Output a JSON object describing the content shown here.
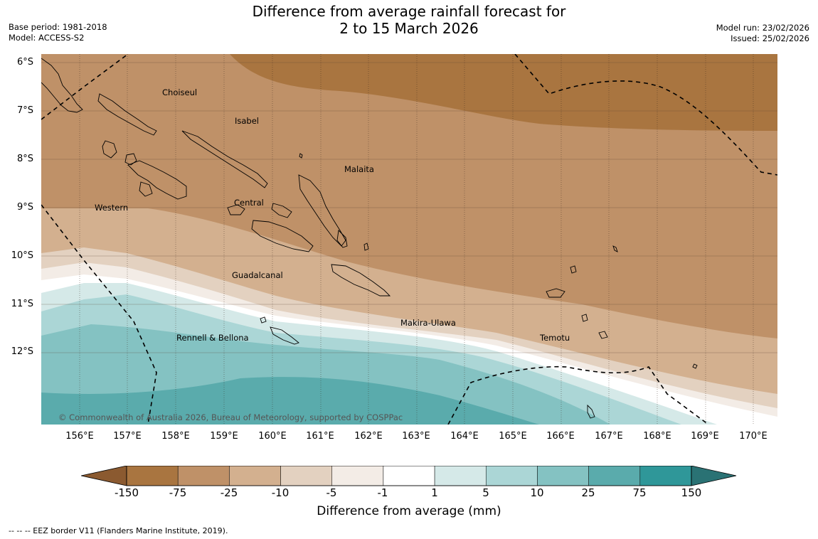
{
  "title": {
    "line1": "Difference from average rainfall forecast for",
    "line2": "2 to 15 March 2026"
  },
  "meta": {
    "base_period": "Base period: 1981-2018",
    "model": "Model: ACCESS-S2",
    "model_run": "Model run: 23/02/2026",
    "issued": "Issued: 25/02/2026"
  },
  "latitude_labels": [
    "6°S",
    "7°S",
    "8°S",
    "9°S",
    "10°S",
    "11°S",
    "12°S"
  ],
  "longitude_labels": [
    "156°E",
    "157°E",
    "158°E",
    "159°E",
    "160°E",
    "161°E",
    "162°E",
    "163°E",
    "164°E",
    "165°E",
    "166°E",
    "167°E",
    "168°E",
    "169°E",
    "170°E"
  ],
  "places": {
    "choiseul": "Choiseul",
    "isabel": "Isabel",
    "malaita": "Malaita",
    "western": "Western",
    "central": "Central",
    "guadalcanal": "Guadalcanal",
    "makira_ulawa": "Makira-Ulawa",
    "temotu": "Temotu",
    "rennell_bellona": "Rennell & Bellona"
  },
  "copyright": "© Commonwealth of Australia 2026, Bureau of Meteorology, supported by COSPPac",
  "colorbar": {
    "title": "Difference from average (mm)",
    "ticks": [
      "-150",
      "-75",
      "-25",
      "-10",
      "-5",
      "-1",
      "1",
      "5",
      "10",
      "25",
      "75",
      "150"
    ],
    "colors": [
      "#a97540",
      "#bf9168",
      "#d3b08f",
      "#e3d1c0",
      "#f3ece6",
      "#ffffff",
      "#d5e9e8",
      "#abd6d6",
      "#84c2c2",
      "#5aabac",
      "#2f9799"
    ],
    "under_color": "#8b5a30",
    "over_color": "#2a7274"
  },
  "footnote": "--  --  -- EEZ border V11 (Flanders Marine Institute, 2019)."
}
